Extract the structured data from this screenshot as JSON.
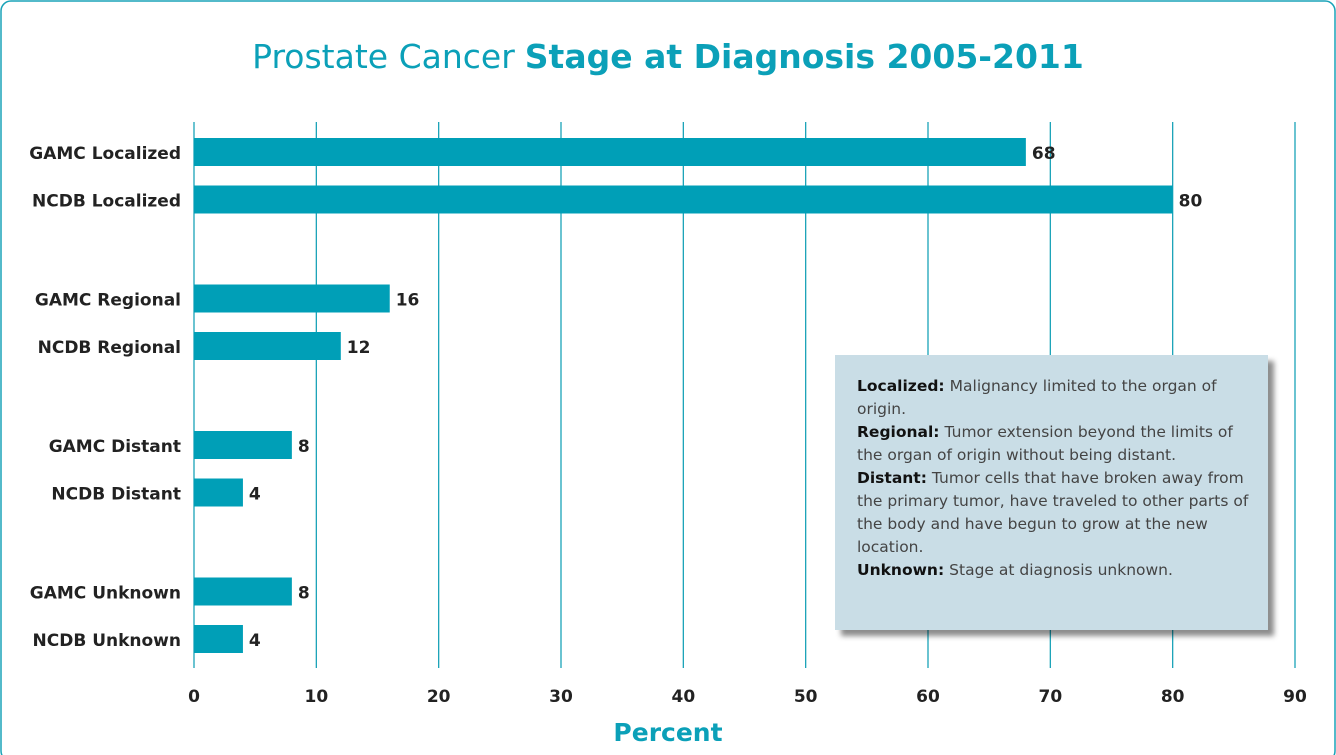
{
  "chart_data": {
    "type": "hbar",
    "title": "Prostate Cancer",
    "title_bold": "Stage at Diagnosis 2005-2011",
    "xlabel": "Percent",
    "categories": [
      "GAMC Localized",
      "NCDB Localized",
      "GAMC Regional",
      "NCDB Regional",
      "GAMC Distant",
      "NCDB Distant",
      "GAMC Unknown",
      "NCDB Unknown"
    ],
    "values": [
      68,
      80,
      16,
      12,
      8,
      4,
      8,
      4
    ],
    "color": "#009fb7",
    "xlim": [
      0,
      90
    ],
    "xticks": [
      0,
      10,
      20,
      30,
      40,
      50,
      60,
      70,
      80,
      90
    ],
    "grid": true,
    "definitions": [
      {
        "term": "Localized:",
        "text": "Malignancy limited to the organ of origin."
      },
      {
        "term": "Regional:",
        "text": "Tumor extension beyond the limits of the organ of origin without being distant."
      },
      {
        "term": "Distant:",
        "text": "Tumor cells that have broken away from the primary tumor, have traveled to other parts of the body and have begun to grow at the new location."
      },
      {
        "term": "Unknown:",
        "text": "Stage at diagnosis unknown."
      }
    ]
  }
}
